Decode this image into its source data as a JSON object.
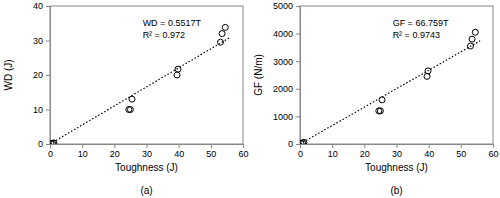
{
  "chart_data": [
    {
      "type": "scatter",
      "panel_label": "(a)",
      "x_label": "Toughness (J)",
      "y_label": "WD (J)",
      "annotations": [
        "WD = 0.5517T",
        "R² = 0.972"
      ],
      "xlim": [
        0,
        60
      ],
      "xticks": [
        0,
        10,
        20,
        30,
        40,
        50,
        60
      ],
      "ylim": [
        0,
        40
      ],
      "yticks": [
        0,
        10,
        20,
        30,
        40
      ],
      "tick_labels": true,
      "grid": false,
      "series": [
        {
          "type": "scatter",
          "marker": "circle",
          "color": "#000000",
          "x": [
            0.3,
            0.8,
            1.2,
            24.5,
            25,
            25.5,
            39.5,
            39.8,
            53,
            53.5,
            54.5
          ],
          "values": [
            0.1,
            0.2,
            0.3,
            10,
            10,
            13,
            20,
            21.7,
            29.5,
            32,
            33.8
          ]
        },
        {
          "type": "line",
          "line_style": "dotted",
          "color": "#000000",
          "x": [
            0,
            56
          ],
          "values": [
            0,
            30.9
          ]
        }
      ]
    },
    {
      "type": "scatter",
      "panel_label": "(b)",
      "x_label": "Toughness (J)",
      "y_label": "GF (N/m)",
      "annotations": [
        "GF = 66.759T",
        "R² = 0.9743"
      ],
      "xlim": [
        0,
        60
      ],
      "xticks": [
        0,
        10,
        20,
        30,
        40,
        50,
        60
      ],
      "ylim": [
        0,
        5000
      ],
      "yticks": [
        0,
        1000,
        2000,
        3000,
        4000,
        5000
      ],
      "tick_labels": true,
      "grid": false,
      "series": [
        {
          "type": "scatter",
          "marker": "circle",
          "color": "#000000",
          "x": [
            0.3,
            0.8,
            1.2,
            24.5,
            25,
            25.5,
            39.5,
            39.8,
            53,
            53.5,
            54.5
          ],
          "values": [
            20,
            40,
            60,
            1200,
            1200,
            1600,
            2450,
            2650,
            3550,
            3800,
            4050
          ]
        },
        {
          "type": "line",
          "line_style": "dotted",
          "color": "#000000",
          "x": [
            0,
            56
          ],
          "values": [
            0,
            3738
          ]
        }
      ]
    }
  ]
}
